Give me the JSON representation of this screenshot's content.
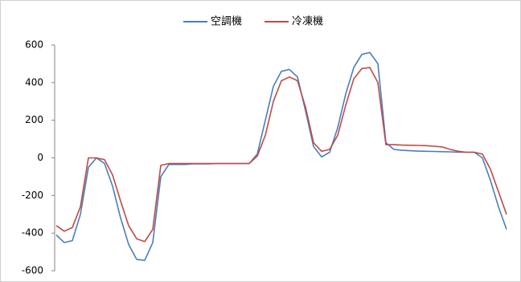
{
  "chart_data": {
    "type": "line",
    "categories": [
      null,
      null,
      null,
      null,
      null,
      null,
      null,
      null,
      null,
      null,
      null,
      null,
      null,
      null,
      null,
      null,
      null,
      null,
      null,
      null,
      null,
      null,
      null,
      null,
      null,
      null,
      null,
      null,
      null,
      null,
      null,
      null,
      null,
      null,
      null,
      null,
      null,
      null,
      null,
      null,
      null,
      null,
      null,
      null,
      null,
      null,
      null,
      null,
      null,
      null,
      null,
      null,
      null,
      null,
      null,
      null,
      null
    ],
    "series": [
      {
        "name": "空調機",
        "color": "#4a7ebb",
        "values": [
          -410,
          -450,
          -440,
          -300,
          -50,
          0,
          -30,
          -150,
          -320,
          -460,
          -540,
          -545,
          -450,
          -100,
          -35,
          -35,
          -35,
          -32,
          -32,
          -32,
          -30,
          -30,
          -30,
          -30,
          -30,
          20,
          200,
          380,
          460,
          470,
          430,
          250,
          60,
          5,
          30,
          160,
          340,
          480,
          550,
          560,
          500,
          80,
          45,
          40,
          38,
          36,
          35,
          34,
          33,
          32,
          30,
          30,
          30,
          0,
          -120,
          -260,
          -380
        ]
      },
      {
        "name": "冷凍機",
        "color": "#be4b48",
        "values": [
          -360,
          -390,
          -370,
          -260,
          0,
          0,
          -10,
          -90,
          -230,
          -360,
          -430,
          -445,
          -380,
          -40,
          -30,
          -30,
          -30,
          -30,
          -30,
          -30,
          -30,
          -30,
          -30,
          -30,
          -30,
          10,
          120,
          300,
          410,
          430,
          410,
          270,
          80,
          35,
          45,
          120,
          280,
          420,
          475,
          480,
          400,
          70,
          70,
          68,
          67,
          66,
          65,
          62,
          58,
          45,
          35,
          30,
          30,
          20,
          -60,
          -180,
          -300
        ]
      }
    ],
    "ylim": [
      -600,
      600
    ],
    "yticks": [
      -600,
      -400,
      -200,
      0,
      200,
      400,
      600
    ],
    "grid": false,
    "legend": "top"
  }
}
